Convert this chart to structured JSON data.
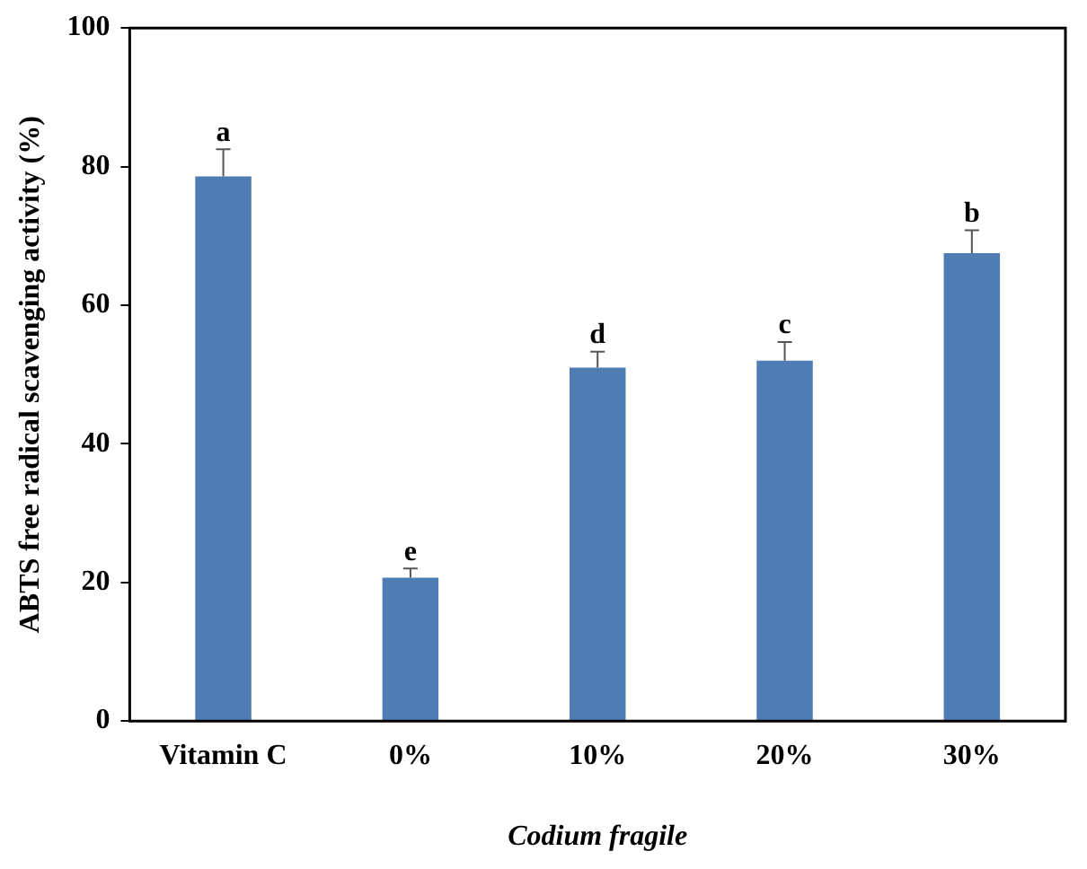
{
  "chart_data": {
    "type": "bar",
    "ylabel": "ABTS free radical scavenging activity (%)",
    "xlabel": "Codium fragile",
    "categories": [
      "Vitamin C",
      "0%",
      "10%",
      "20%",
      "30%"
    ],
    "values": [
      78.6,
      20.7,
      51.0,
      52.0,
      67.5
    ],
    "errors": [
      [
        78.6,
        82.5
      ],
      [
        20.7,
        22.0
      ],
      [
        51.0,
        53.3
      ],
      [
        52.0,
        54.7
      ],
      [
        67.5,
        70.8
      ]
    ],
    "color": "#4f7db3",
    "ylim": [
      0,
      100
    ],
    "yticks": [
      0,
      20,
      40,
      60,
      80,
      100
    ],
    "grid": false,
    "legend": false,
    "annotations": [
      {
        "text": "a",
        "x": "Vitamin C",
        "y": 82.5
      },
      {
        "text": "e",
        "x": "0%",
        "y": 22.0
      },
      {
        "text": "d",
        "x": "10%",
        "y": 53.3
      },
      {
        "text": "c",
        "x": "20%",
        "y": 54.7
      },
      {
        "text": "b",
        "x": "30%",
        "y": 70.8
      }
    ]
  }
}
